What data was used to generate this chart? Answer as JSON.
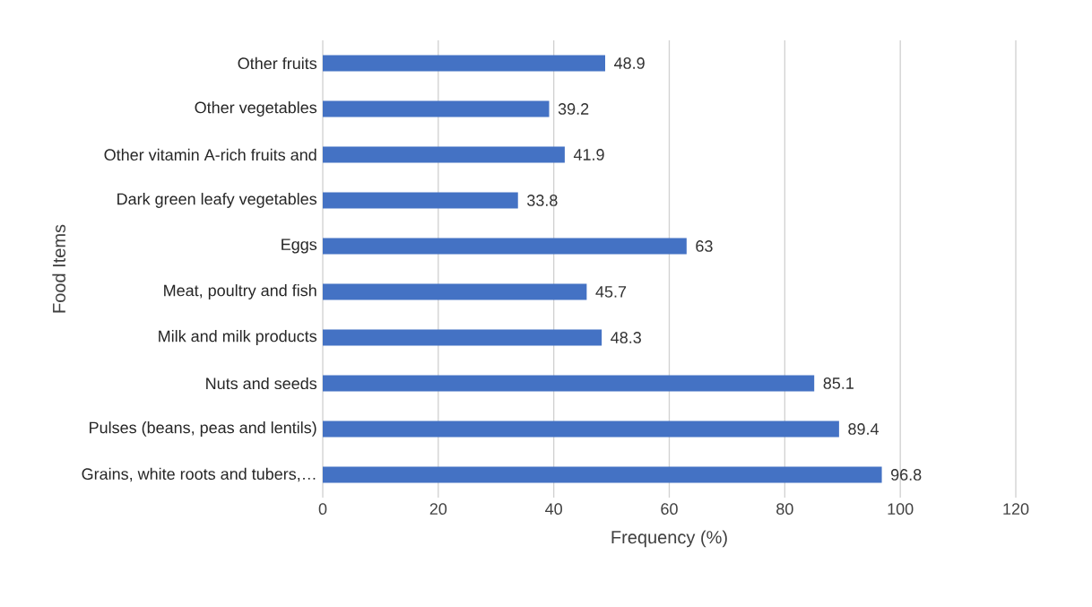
{
  "chart_data": {
    "type": "bar",
    "orientation": "horizontal",
    "xlabel": "Frequency  (%)",
    "ylabel": "Food Items",
    "categories": [
      "Other fruits",
      "Other vegetables",
      "Other vitamin A-rich fruits and",
      "Dark green leafy vegetables",
      "Eggs",
      "Meat, poultry and fish",
      "Milk and milk products",
      "Nuts and seeds",
      "Pulses (beans, peas and lentils)",
      "Grains, white roots and tubers,…"
    ],
    "values": [
      48.9,
      39.2,
      41.9,
      33.8,
      63,
      45.7,
      48.3,
      85.1,
      89.4,
      96.8
    ],
    "color": "#4472c4",
    "xlim": [
      0,
      120
    ],
    "xticks": [
      0,
      20,
      40,
      60,
      80,
      100,
      120
    ],
    "grid": "x",
    "data_labels": true
  }
}
